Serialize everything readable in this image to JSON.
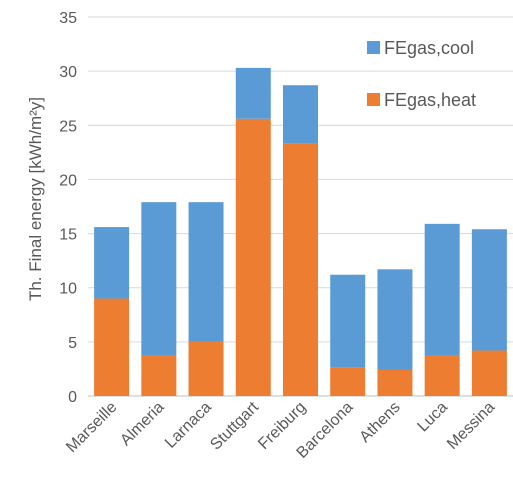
{
  "chart_data": {
    "type": "bar",
    "stacked": true,
    "categories": [
      "Marseille",
      "Almeria",
      "Larnaca",
      "Stuttgart",
      "Freiburg",
      "Barcelona",
      "Athens",
      "Luca",
      "Messina"
    ],
    "series": [
      {
        "name": "FEgas,heat",
        "color": "#ED7D31",
        "values": [
          9.0,
          3.7,
          5.0,
          25.6,
          23.3,
          2.6,
          2.4,
          3.7,
          4.2
        ]
      },
      {
        "name": "FEgas,cool",
        "color": "#5B9BD5",
        "values": [
          6.6,
          14.2,
          12.9,
          4.7,
          5.4,
          8.6,
          9.3,
          12.2,
          11.2
        ]
      }
    ],
    "title": "",
    "xlabel": "",
    "ylabel": "Th. Final energy  [kWh/m²y]",
    "ylim": [
      0,
      35
    ],
    "yticks": [
      0,
      5,
      10,
      15,
      20,
      25,
      30,
      35
    ],
    "grid": true,
    "legend_position": "top-right",
    "legend_order": [
      "FEgas,cool",
      "FEgas,heat"
    ]
  }
}
